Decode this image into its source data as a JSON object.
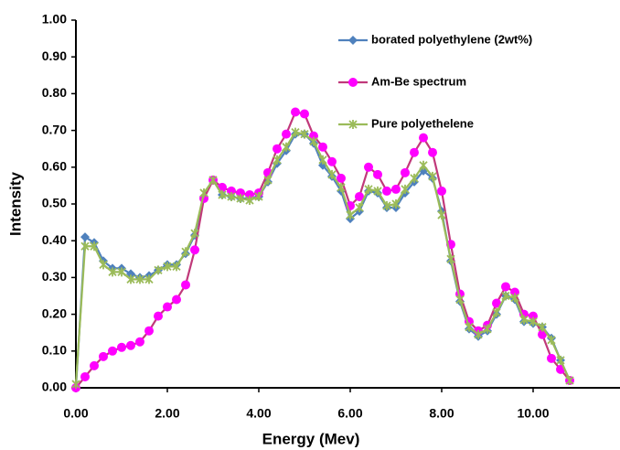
{
  "chart_data": {
    "type": "line",
    "xlabel": "Energy (Mev)",
    "ylabel": "Intensity",
    "xlim": [
      0,
      12
    ],
    "ylim": [
      0,
      1
    ],
    "xticks": [
      {
        "value": 0,
        "label": "0.00"
      },
      {
        "value": 2,
        "label": "2.00"
      },
      {
        "value": 4,
        "label": "4.00"
      },
      {
        "value": 6,
        "label": "6.00"
      },
      {
        "value": 8,
        "label": "8.00"
      },
      {
        "value": 10,
        "label": "10.00"
      }
    ],
    "yticks": [
      {
        "value": 0,
        "label": "0.00"
      },
      {
        "value": 0.1,
        "label": "0.10"
      },
      {
        "value": 0.2,
        "label": "0.20"
      },
      {
        "value": 0.3,
        "label": "0.30"
      },
      {
        "value": 0.4,
        "label": "0.40"
      },
      {
        "value": 0.5,
        "label": "0.50"
      },
      {
        "value": 0.6,
        "label": "0.60"
      },
      {
        "value": 0.7,
        "label": "0.70"
      },
      {
        "value": 0.8,
        "label": "0.80"
      },
      {
        "value": 0.9,
        "label": "0.90"
      },
      {
        "value": 1,
        "label": "1.00"
      }
    ],
    "grid": false,
    "legend": "upper right",
    "x": [
      0,
      0.2,
      0.4,
      0.6,
      0.8,
      1.0,
      1.2,
      1.4,
      1.6,
      1.8,
      2.0,
      2.2,
      2.4,
      2.6,
      2.8,
      3.0,
      3.2,
      3.4,
      3.6,
      3.8,
      4.0,
      4.2,
      4.4,
      4.6,
      4.8,
      5.0,
      5.2,
      5.4,
      5.6,
      5.8,
      6.0,
      6.2,
      6.4,
      6.6,
      6.8,
      7.0,
      7.2,
      7.4,
      7.6,
      7.8,
      8.0,
      8.2,
      8.4,
      8.6,
      8.8,
      9.0,
      9.2,
      9.4,
      9.6,
      9.8,
      10.0,
      10.2,
      10.4,
      10.6,
      10.8
    ],
    "series": [
      {
        "name": "borated polyethylene (2wt%)",
        "color": "#4f81bd",
        "marker": "diamond",
        "marker_color": "#4f81bd",
        "values": [
          0,
          0.41,
          0.395,
          0.345,
          0.325,
          0.325,
          0.31,
          0.3,
          0.305,
          0.32,
          0.335,
          0.335,
          0.365,
          0.415,
          0.52,
          0.565,
          0.525,
          0.52,
          0.515,
          0.515,
          0.52,
          0.56,
          0.61,
          0.645,
          0.69,
          0.69,
          0.665,
          0.605,
          0.575,
          0.535,
          0.46,
          0.48,
          0.535,
          0.53,
          0.49,
          0.49,
          0.53,
          0.56,
          0.59,
          0.57,
          0.48,
          0.345,
          0.235,
          0.16,
          0.14,
          0.155,
          0.2,
          0.25,
          0.24,
          0.18,
          0.175,
          0.165,
          0.135,
          0.075,
          0.02
        ]
      },
      {
        "name": "Am-Be spectrum",
        "color": "#c0397a",
        "marker": "circle",
        "marker_color": "#ff00ff",
        "values": [
          0,
          0.03,
          0.06,
          0.085,
          0.1,
          0.11,
          0.115,
          0.125,
          0.155,
          0.195,
          0.22,
          0.24,
          0.28,
          0.375,
          0.515,
          0.565,
          0.545,
          0.535,
          0.53,
          0.525,
          0.53,
          0.585,
          0.65,
          0.69,
          0.75,
          0.745,
          0.685,
          0.655,
          0.615,
          0.57,
          0.495,
          0.52,
          0.6,
          0.58,
          0.535,
          0.54,
          0.585,
          0.64,
          0.68,
          0.64,
          0.535,
          0.39,
          0.255,
          0.18,
          0.155,
          0.17,
          0.23,
          0.275,
          0.26,
          0.2,
          0.195,
          0.145,
          0.08,
          0.05,
          0.02
        ]
      },
      {
        "name": "Pure polyethelene",
        "color": "#9bbb59",
        "marker": "star",
        "marker_color": "#9bbb59",
        "values": [
          0.01,
          0.385,
          0.385,
          0.335,
          0.315,
          0.315,
          0.295,
          0.295,
          0.295,
          0.32,
          0.33,
          0.33,
          0.37,
          0.42,
          0.53,
          0.565,
          0.525,
          0.52,
          0.515,
          0.51,
          0.52,
          0.565,
          0.62,
          0.655,
          0.695,
          0.69,
          0.67,
          0.62,
          0.58,
          0.545,
          0.47,
          0.49,
          0.54,
          0.535,
          0.495,
          0.5,
          0.54,
          0.57,
          0.605,
          0.575,
          0.47,
          0.35,
          0.24,
          0.165,
          0.145,
          0.16,
          0.205,
          0.25,
          0.245,
          0.185,
          0.18,
          0.165,
          0.13,
          0.075,
          0.02
        ]
      }
    ]
  }
}
